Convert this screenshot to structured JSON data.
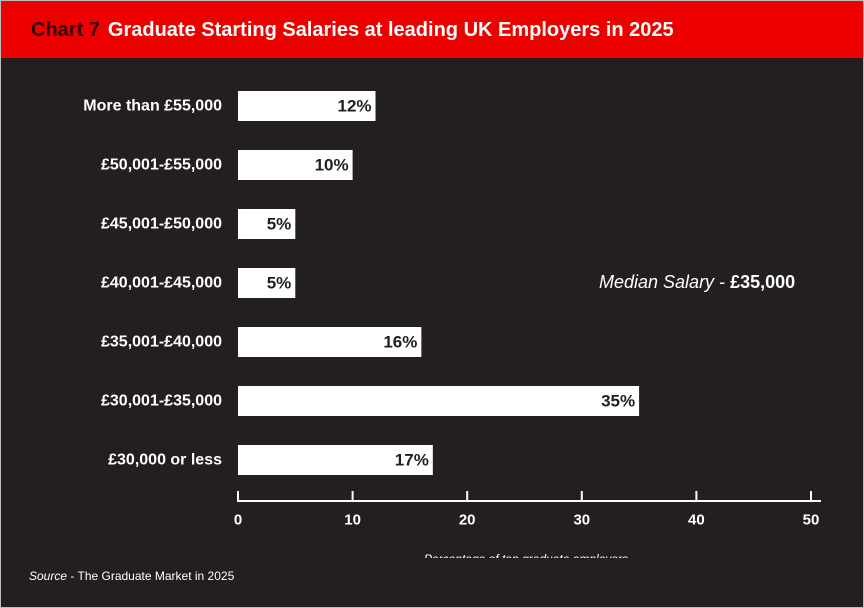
{
  "header": {
    "chart_number": "Chart 7",
    "title": "Graduate Starting Salaries at leading UK Employers in 2025"
  },
  "annotation": {
    "label": "Median Salary",
    "separator": " - ",
    "value": "£35,000"
  },
  "source": {
    "label": "Source",
    "separator": " - ",
    "text": "The Graduate Market in 2025"
  },
  "colors": {
    "background": "#231f20",
    "header": "#ec0000",
    "bars": "#ffffff",
    "text": "#ffffff"
  },
  "chart_data": {
    "type": "bar",
    "orientation": "horizontal",
    "categories": [
      "More than £55,000",
      "£50,001-£55,000",
      "£45,001-£50,000",
      "£40,001-£45,000",
      "£35,001-£40,000",
      "£30,001-£35,000",
      "£30,000 or less"
    ],
    "values": [
      12,
      10,
      5,
      5,
      16,
      35,
      17
    ],
    "data_labels": [
      "12%",
      "10%",
      "5%",
      "5%",
      "16%",
      "35%",
      "17%"
    ],
    "xlabel": "Percentage of top graduate employers",
    "xlim": [
      0,
      50
    ],
    "xticks": [
      0,
      10,
      20,
      30,
      40,
      50
    ],
    "grid": false,
    "legend": "none"
  }
}
